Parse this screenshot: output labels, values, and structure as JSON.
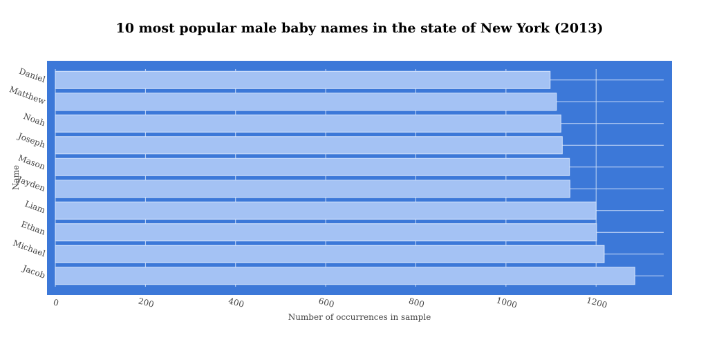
{
  "chart_data": {
    "type": "bar",
    "orientation": "horizontal",
    "title": "10 most popular male baby names in the state of New York (2013)",
    "xlabel": "Number of occurrences in sample",
    "ylabel": "Name",
    "categories": [
      "Daniel",
      "Matthew",
      "Noah",
      "Joseph",
      "Mason",
      "Jayden",
      "Liam",
      "Ethan",
      "Michael",
      "Jacob"
    ],
    "values": [
      1098,
      1112,
      1122,
      1125,
      1141,
      1142,
      1200,
      1201,
      1218,
      1286
    ],
    "xlim": [
      0,
      1350
    ],
    "xticks": [
      "0",
      "200",
      "400",
      "600",
      "800",
      "1000",
      "1200"
    ],
    "grid": true,
    "colors": {
      "plot_background": "#3c78d8",
      "bar_fill": "#a4c2f4",
      "bar_stroke": "#d6e4fb",
      "grid": "#c9dbf7"
    }
  }
}
